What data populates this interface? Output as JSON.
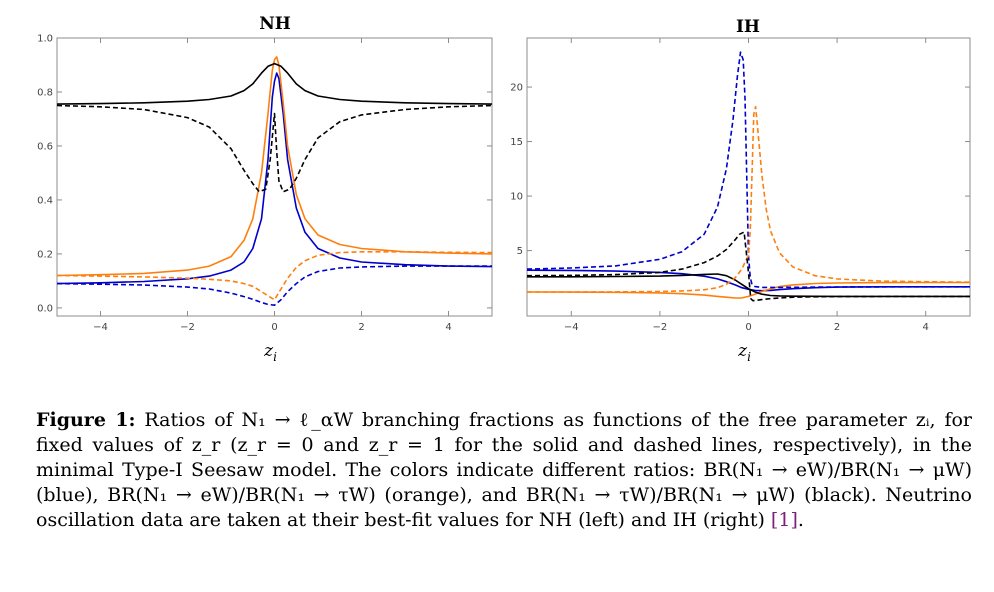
{
  "chart_data": [
    {
      "type": "line",
      "title": "NH",
      "xlabel": "z_i",
      "xlim": [
        -5,
        5
      ],
      "ylim": [
        -0.03,
        1.0
      ],
      "xticks": [
        -4,
        -2,
        0,
        2,
        4
      ],
      "xtick_labels": [
        "−4",
        "−2",
        "0",
        "2",
        "4"
      ],
      "yticks": [
        0.0,
        0.2,
        0.4,
        0.6,
        0.8,
        1.0
      ],
      "ytick_labels": [
        "0.0",
        "0.2",
        "0.4",
        "0.6",
        "0.8",
        "1.0"
      ],
      "series": [
        {
          "name": "BR(eW)/BR(μW), z_r = 0",
          "color": "#0000cc",
          "dash": false,
          "x": [
            -5,
            -4,
            -3,
            -2,
            -1.5,
            -1,
            -0.7,
            -0.5,
            -0.3,
            -0.15,
            -0.05,
            0,
            0.05,
            0.1,
            0.2,
            0.3,
            0.5,
            0.7,
            1,
            1.5,
            2,
            3,
            4,
            5
          ],
          "y": [
            0.09,
            0.093,
            0.098,
            0.108,
            0.118,
            0.14,
            0.17,
            0.22,
            0.33,
            0.55,
            0.78,
            0.84,
            0.87,
            0.85,
            0.72,
            0.55,
            0.37,
            0.28,
            0.22,
            0.185,
            0.17,
            0.16,
            0.155,
            0.153
          ]
        },
        {
          "name": "BR(eW)/BR(τW), z_r = 0",
          "color": "#ff7f0e",
          "dash": false,
          "x": [
            -5,
            -4,
            -3,
            -2,
            -1.5,
            -1,
            -0.7,
            -0.5,
            -0.3,
            -0.15,
            -0.05,
            0,
            0.05,
            0.1,
            0.2,
            0.3,
            0.5,
            0.7,
            1,
            1.5,
            2,
            3,
            4,
            5
          ],
          "y": [
            0.12,
            0.123,
            0.128,
            0.14,
            0.155,
            0.19,
            0.25,
            0.33,
            0.5,
            0.72,
            0.88,
            0.92,
            0.93,
            0.9,
            0.76,
            0.6,
            0.42,
            0.33,
            0.27,
            0.235,
            0.22,
            0.208,
            0.203,
            0.2
          ]
        },
        {
          "name": "BR(τW)/BR(μW), z_r = 0",
          "color": "#000000",
          "dash": false,
          "x": [
            -5,
            -4,
            -3,
            -2,
            -1.5,
            -1,
            -0.7,
            -0.5,
            -0.3,
            -0.15,
            0,
            0.15,
            0.3,
            0.5,
            0.7,
            1,
            1.5,
            2,
            3,
            4,
            5
          ],
          "y": [
            0.755,
            0.757,
            0.76,
            0.766,
            0.772,
            0.785,
            0.805,
            0.83,
            0.87,
            0.895,
            0.905,
            0.895,
            0.87,
            0.83,
            0.805,
            0.785,
            0.772,
            0.766,
            0.76,
            0.757,
            0.755
          ]
        },
        {
          "name": "BR(eW)/BR(μW), z_r = 1",
          "color": "#0000cc",
          "dash": true,
          "x": [
            -5,
            -4,
            -3,
            -2,
            -1.5,
            -1,
            -0.7,
            -0.5,
            -0.3,
            -0.15,
            0,
            0.15,
            0.3,
            0.5,
            0.7,
            1,
            1.5,
            2,
            3,
            4,
            5
          ],
          "y": [
            0.09,
            0.088,
            0.085,
            0.077,
            0.07,
            0.055,
            0.042,
            0.032,
            0.02,
            0.013,
            0.01,
            0.03,
            0.06,
            0.09,
            0.115,
            0.135,
            0.148,
            0.152,
            0.155,
            0.155,
            0.155
          ]
        },
        {
          "name": "BR(eW)/BR(τW), z_r = 1",
          "color": "#ff7f0e",
          "dash": true,
          "x": [
            -5,
            -4,
            -3,
            -2,
            -1.5,
            -1,
            -0.7,
            -0.5,
            -0.3,
            -0.15,
            0,
            0.15,
            0.3,
            0.5,
            0.7,
            1,
            1.5,
            2,
            3,
            4,
            5
          ],
          "y": [
            0.12,
            0.118,
            0.115,
            0.11,
            0.106,
            0.1,
            0.09,
            0.08,
            0.06,
            0.045,
            0.03,
            0.07,
            0.11,
            0.15,
            0.175,
            0.195,
            0.205,
            0.208,
            0.208,
            0.206,
            0.205
          ]
        },
        {
          "name": "BR(τW)/BR(μW), z_r = 1",
          "color": "#000000",
          "dash": true,
          "x": [
            -5,
            -4,
            -3,
            -2,
            -1.5,
            -1,
            -0.7,
            -0.5,
            -0.35,
            -0.2,
            -0.1,
            0,
            0.05,
            0.1,
            0.2,
            0.35,
            0.5,
            0.7,
            1,
            1.5,
            2,
            3,
            4,
            5
          ],
          "y": [
            0.75,
            0.745,
            0.735,
            0.705,
            0.67,
            0.59,
            0.51,
            0.46,
            0.43,
            0.44,
            0.55,
            0.72,
            0.58,
            0.47,
            0.43,
            0.44,
            0.48,
            0.55,
            0.63,
            0.69,
            0.715,
            0.735,
            0.745,
            0.75
          ]
        }
      ]
    },
    {
      "type": "line",
      "title": "IH",
      "xlabel": "z_i",
      "xlim": [
        -5,
        5
      ],
      "ylim": [
        -1.0,
        24.5
      ],
      "xticks": [
        -4,
        -2,
        0,
        2,
        4
      ],
      "xtick_labels": [
        "−4",
        "−2",
        "0",
        "2",
        "4"
      ],
      "yticks": [
        5,
        10,
        15,
        20
      ],
      "ytick_labels": [
        "5",
        "10",
        "15",
        "20"
      ],
      "series": [
        {
          "name": "BR(eW)/BR(μW), z_r = 0",
          "color": "#0000cc",
          "dash": false,
          "x": [
            -5,
            -4,
            -3,
            -2,
            -1.5,
            -1,
            -0.7,
            -0.5,
            -0.3,
            -0.15,
            0,
            0.15,
            0.3,
            0.5,
            0.7,
            1,
            1.5,
            2,
            3,
            4,
            5
          ],
          "y": [
            3.2,
            3.18,
            3.12,
            3.0,
            2.88,
            2.65,
            2.4,
            2.15,
            1.85,
            1.6,
            1.45,
            1.35,
            1.32,
            1.35,
            1.42,
            1.5,
            1.6,
            1.65,
            1.68,
            1.68,
            1.68
          ]
        },
        {
          "name": "BR(eW)/BR(τW), z_r = 0",
          "color": "#ff7f0e",
          "dash": false,
          "x": [
            -5,
            -4,
            -3,
            -2,
            -1.5,
            -1,
            -0.7,
            -0.5,
            -0.3,
            -0.15,
            0,
            0.15,
            0.3,
            0.5,
            0.7,
            1,
            1.5,
            2,
            3,
            4,
            5
          ],
          "y": [
            1.2,
            1.19,
            1.17,
            1.12,
            1.05,
            0.92,
            0.8,
            0.72,
            0.65,
            0.66,
            0.8,
            1.0,
            1.25,
            1.5,
            1.7,
            1.85,
            1.98,
            2.03,
            2.06,
            2.07,
            2.07
          ]
        },
        {
          "name": "BR(τW)/BR(μW), z_r = 0",
          "color": "#000000",
          "dash": false,
          "x": [
            -5,
            -4,
            -3,
            -2,
            -1.5,
            -1,
            -0.7,
            -0.5,
            -0.3,
            -0.15,
            0,
            0.15,
            0.3,
            0.5,
            0.7,
            1,
            1.5,
            2,
            3,
            4,
            5
          ],
          "y": [
            2.6,
            2.6,
            2.62,
            2.66,
            2.72,
            2.82,
            2.85,
            2.7,
            2.3,
            1.9,
            1.5,
            1.2,
            1.0,
            0.88,
            0.84,
            0.82,
            0.81,
            0.8,
            0.8,
            0.8,
            0.8
          ]
        },
        {
          "name": "BR(eW)/BR(μW), z_r = 1",
          "color": "#0000cc",
          "dash": true,
          "x": [
            -5,
            -4,
            -3,
            -2,
            -1.5,
            -1,
            -0.7,
            -0.5,
            -0.35,
            -0.25,
            -0.18,
            -0.12,
            -0.08,
            -0.04,
            0,
            0.04,
            0.08,
            0.15,
            0.3,
            0.5,
            0.7,
            1,
            1.5,
            2,
            3,
            4,
            5
          ],
          "y": [
            3.3,
            3.4,
            3.6,
            4.2,
            4.9,
            6.5,
            9.0,
            12.5,
            17.0,
            21.0,
            23.2,
            22.5,
            19.0,
            12.0,
            4.5,
            2.5,
            1.9,
            1.7,
            1.62,
            1.62,
            1.62,
            1.63,
            1.65,
            1.66,
            1.67,
            1.68,
            1.68
          ]
        },
        {
          "name": "BR(eW)/BR(τW), z_r = 1",
          "color": "#ff7f0e",
          "dash": true,
          "x": [
            -5,
            -4,
            -3,
            -2,
            -1.5,
            -1,
            -0.7,
            -0.5,
            -0.3,
            -0.15,
            -0.05,
            0,
            0.04,
            0.08,
            0.12,
            0.16,
            0.2,
            0.3,
            0.4,
            0.5,
            0.7,
            1,
            1.5,
            2,
            3,
            4,
            5
          ],
          "y": [
            1.2,
            1.2,
            1.21,
            1.25,
            1.3,
            1.4,
            1.6,
            1.9,
            2.5,
            3.3,
            4.2,
            4.5,
            7.0,
            12.0,
            17.5,
            18.2,
            16.5,
            12.0,
            8.8,
            6.8,
            4.8,
            3.5,
            2.7,
            2.4,
            2.2,
            2.15,
            2.1
          ]
        },
        {
          "name": "BR(τW)/BR(μW), z_r = 1",
          "color": "#000000",
          "dash": true,
          "x": [
            -5,
            -4,
            -3,
            -2,
            -1.5,
            -1,
            -0.7,
            -0.5,
            -0.3,
            -0.2,
            -0.1,
            0,
            0.05,
            0.1,
            0.2,
            0.3,
            0.5,
            0.7,
            1,
            1.5,
            2,
            3,
            4,
            5
          ],
          "y": [
            2.7,
            2.72,
            2.8,
            3.0,
            3.3,
            3.9,
            4.5,
            5.1,
            6.0,
            6.5,
            6.7,
            3.0,
            0.6,
            0.4,
            0.45,
            0.5,
            0.6,
            0.65,
            0.72,
            0.76,
            0.78,
            0.79,
            0.8,
            0.8
          ]
        }
      ]
    }
  ],
  "caption": {
    "label": "Figure 1:",
    "body": "Ratios of N₁ → ℓ_αW branching fractions as functions of the free parameter zᵢ, for fixed values of z_r (z_r = 0 and z_r = 1 for the solid and dashed lines, respectively), in the minimal Type-I Seesaw model. The colors indicate different ratios: BR(N₁ → eW)/BR(N₁ → μW) (blue), BR(N₁ → eW)/BR(N₁ → τW) (orange), and BR(N₁ → τW)/BR(N₁ → μW) (black). Neutrino oscillation data are taken at their best-fit values for NH (left) and IH (right)",
    "ref_open": "[",
    "ref_num": "1",
    "ref_close": "]",
    "end": "."
  }
}
